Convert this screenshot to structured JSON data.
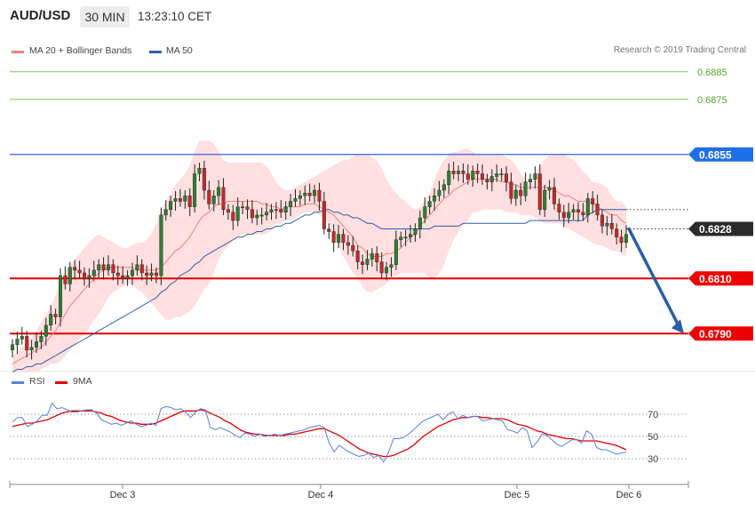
{
  "header": {
    "symbol": "AUD/USD",
    "timeframe": "30 MIN",
    "time": "13:23:10 CET"
  },
  "legend": {
    "ma20_label": "MA 20 + Bollinger Bands",
    "ma50_label": "MA 50"
  },
  "copyright": "Research © 2019 Trading Central",
  "rsi_legend": {
    "rsi_label": "RSI",
    "ma_label": "9MA"
  },
  "colors": {
    "up": "#2e7d32",
    "down": "#c62828",
    "band_fill": "#ffd9d9",
    "ma20": "#f08080",
    "ma50": "#2e5fa8",
    "resistance": "#3a5fd6",
    "support": "#e00000",
    "green_level": "#7ac943",
    "rsi": "#5b7fe0",
    "rsi_ma": "#e00000",
    "arrow": "#2b5ea7"
  },
  "chart_data": [
    {
      "type": "candlestick",
      "title": "",
      "x_ticks": [
        "Dec 3",
        "Dec 4",
        "Dec 5",
        "Dec 6"
      ],
      "ylim": [
        0.67775,
        0.68975
      ],
      "levels": [
        {
          "value": 0.6885,
          "label": "0.6885",
          "style": "thin-green"
        },
        {
          "value": 0.6875,
          "label": "0.6875",
          "style": "thin-green"
        },
        {
          "value": 0.6855,
          "label": "0.6855",
          "style": "resistance"
        },
        {
          "value": 0.6828,
          "label": "0.6828",
          "style": "current-price"
        },
        {
          "value": 0.681,
          "label": "0.6810",
          "style": "support"
        },
        {
          "value": 0.679,
          "label": "0.6790",
          "style": "support"
        }
      ],
      "forecast_arrow": {
        "from": 0.6828,
        "to": 0.679
      },
      "closes": [
        0.6786,
        0.6788,
        0.6789,
        0.6784,
        0.6785,
        0.6787,
        0.6789,
        0.6793,
        0.6797,
        0.6796,
        0.6811,
        0.6808,
        0.6814,
        0.6813,
        0.6812,
        0.681,
        0.6811,
        0.6813,
        0.6815,
        0.6813,
        0.6815,
        0.6812,
        0.6811,
        0.681,
        0.6811,
        0.6813,
        0.6815,
        0.6812,
        0.6811,
        0.6812,
        0.6811,
        0.6833,
        0.6835,
        0.6838,
        0.6839,
        0.6838,
        0.684,
        0.6836,
        0.6848,
        0.685,
        0.6842,
        0.6837,
        0.684,
        0.6843,
        0.6835,
        0.6834,
        0.6831,
        0.6836,
        0.6836,
        0.6835,
        0.6832,
        0.6833,
        0.6833,
        0.6834,
        0.6835,
        0.6835,
        0.6834,
        0.6836,
        0.6838,
        0.6839,
        0.684,
        0.6841,
        0.684,
        0.6842,
        0.6838,
        0.6828,
        0.6827,
        0.6823,
        0.6826,
        0.6823,
        0.6822,
        0.682,
        0.6816,
        0.6815,
        0.6817,
        0.6819,
        0.6816,
        0.6812,
        0.6814,
        0.6815,
        0.6824,
        0.6825,
        0.6825,
        0.6826,
        0.6828,
        0.6832,
        0.6836,
        0.6838,
        0.684,
        0.6842,
        0.6844,
        0.6849,
        0.6848,
        0.6849,
        0.6848,
        0.6846,
        0.6849,
        0.6848,
        0.6846,
        0.6845,
        0.6847,
        0.6848,
        0.6848,
        0.6845,
        0.6839,
        0.6842,
        0.684,
        0.6845,
        0.6846,
        0.6848,
        0.6835,
        0.6842,
        0.6843,
        0.6837,
        0.6834,
        0.6832,
        0.6834,
        0.6835,
        0.6834,
        0.6833,
        0.6839,
        0.6837,
        0.6833,
        0.6829,
        0.683,
        0.6828,
        0.6825,
        0.6823,
        0.6826
      ],
      "ma20": [
        0.6779,
        0.678,
        0.6781,
        0.6782,
        0.6783,
        0.6784,
        0.6785,
        0.6787,
        0.6789,
        0.6791,
        0.6794,
        0.6797,
        0.68,
        0.6802,
        0.6804,
        0.6806,
        0.6808,
        0.681,
        0.6812,
        0.6813,
        0.6814,
        0.6814,
        0.6814,
        0.6814,
        0.6814,
        0.6814,
        0.6813,
        0.6813,
        0.6813,
        0.6813,
        0.6813,
        0.6814,
        0.6816,
        0.6818,
        0.682,
        0.6821,
        0.6823,
        0.6825,
        0.6828,
        0.6831,
        0.6833,
        0.6834,
        0.6836,
        0.6837,
        0.6837,
        0.6838,
        0.6838,
        0.6838,
        0.6838,
        0.6838,
        0.6838,
        0.6838,
        0.6837,
        0.6837,
        0.6836,
        0.6836,
        0.6835,
        0.6836,
        0.6836,
        0.6836,
        0.6836,
        0.6837,
        0.6837,
        0.6837,
        0.6836,
        0.6835,
        0.6834,
        0.6833,
        0.6831,
        0.6829,
        0.6827,
        0.6825,
        0.6822,
        0.6821,
        0.6819,
        0.6818,
        0.6818,
        0.6818,
        0.6819,
        0.6819,
        0.682,
        0.6821,
        0.6823,
        0.6825,
        0.6826,
        0.6829,
        0.6831,
        0.6833,
        0.6835,
        0.6837,
        0.6839,
        0.684,
        0.6842,
        0.6843,
        0.6844,
        0.6845,
        0.6846,
        0.6846,
        0.6846,
        0.6846,
        0.6846,
        0.6846,
        0.6845,
        0.6845,
        0.6844,
        0.6844,
        0.6843,
        0.6843,
        0.6843,
        0.6843,
        0.6843,
        0.6843,
        0.6843,
        0.6842,
        0.6841,
        0.684,
        0.684,
        0.6839,
        0.6838,
        0.6838,
        0.6838,
        0.6837,
        0.6836,
        0.6835,
        0.6834,
        0.6833,
        0.6833,
        0.6831,
        0.683
      ],
      "bb_upper": [
        0.6782,
        0.6783,
        0.6785,
        0.6787,
        0.6789,
        0.6791,
        0.6794,
        0.6797,
        0.68,
        0.6804,
        0.6808,
        0.6812,
        0.6815,
        0.6817,
        0.6819,
        0.6821,
        0.6823,
        0.6825,
        0.6826,
        0.6825,
        0.6824,
        0.6823,
        0.6822,
        0.6821,
        0.6821,
        0.6822,
        0.6823,
        0.6823,
        0.6824,
        0.6826,
        0.683,
        0.6835,
        0.6838,
        0.6841,
        0.6844,
        0.6846,
        0.6848,
        0.6851,
        0.6856,
        0.686,
        0.686,
        0.686,
        0.6859,
        0.6856,
        0.6853,
        0.6852,
        0.6852,
        0.6852,
        0.6852,
        0.6852,
        0.6852,
        0.6852,
        0.6852,
        0.6851,
        0.6848,
        0.6845,
        0.6843,
        0.6842,
        0.6842,
        0.6843,
        0.6844,
        0.6845,
        0.6846,
        0.6847,
        0.6848,
        0.6849,
        0.685,
        0.6851,
        0.6852,
        0.6853,
        0.6853,
        0.6854,
        0.6855,
        0.6855,
        0.6855,
        0.6854,
        0.6853,
        0.685,
        0.6846,
        0.6843,
        0.6841,
        0.6839,
        0.6838,
        0.6836,
        0.6835,
        0.6836,
        0.6838,
        0.6841,
        0.6846,
        0.685,
        0.6853,
        0.6855,
        0.6856,
        0.6856,
        0.6857,
        0.6857,
        0.6856,
        0.6855,
        0.6855,
        0.6855,
        0.6855,
        0.6855,
        0.6855,
        0.6854,
        0.6853,
        0.6851,
        0.6848,
        0.6846,
        0.6845,
        0.6848,
        0.6851,
        0.6853,
        0.6855,
        0.6855,
        0.6855,
        0.6855,
        0.6854,
        0.6853,
        0.6851,
        0.6849,
        0.6847,
        0.6845,
        0.6845,
        0.6844,
        0.6843,
        0.684,
        0.6838,
        0.6838,
        0.6836
      ],
      "bb_lower": [
        0.6776,
        0.6776,
        0.6776,
        0.6776,
        0.6776,
        0.6776,
        0.6777,
        0.6778,
        0.6779,
        0.6779,
        0.678,
        0.6782,
        0.6784,
        0.6786,
        0.6788,
        0.679,
        0.6792,
        0.6795,
        0.6797,
        0.68,
        0.6803,
        0.6805,
        0.6806,
        0.6807,
        0.6808,
        0.6808,
        0.6806,
        0.6805,
        0.6803,
        0.6801,
        0.6799,
        0.6797,
        0.6795,
        0.6795,
        0.6796,
        0.6796,
        0.6797,
        0.6798,
        0.68,
        0.6803,
        0.6806,
        0.6808,
        0.6812,
        0.6817,
        0.682,
        0.6822,
        0.6824,
        0.6825,
        0.6826,
        0.6826,
        0.6826,
        0.6826,
        0.6826,
        0.6826,
        0.6828,
        0.683,
        0.683,
        0.6831,
        0.6831,
        0.6832,
        0.6833,
        0.6834,
        0.6834,
        0.6834,
        0.6833,
        0.6832,
        0.683,
        0.6826,
        0.6822,
        0.6818,
        0.6815,
        0.6812,
        0.681,
        0.6807,
        0.6805,
        0.6805,
        0.6806,
        0.6807,
        0.6808,
        0.681,
        0.6811,
        0.6812,
        0.6812,
        0.6812,
        0.6812,
        0.6812,
        0.6812,
        0.681,
        0.681,
        0.6812,
        0.6815,
        0.682,
        0.6824,
        0.6827,
        0.6829,
        0.6831,
        0.6834,
        0.6834,
        0.6835,
        0.6835,
        0.6835,
        0.6835,
        0.6835,
        0.6834,
        0.6834,
        0.6834,
        0.6833,
        0.6833,
        0.6833,
        0.6832,
        0.6831,
        0.683,
        0.683,
        0.683,
        0.683,
        0.6829,
        0.6828,
        0.6827,
        0.6826,
        0.6825,
        0.6824,
        0.6823,
        0.6822,
        0.6822,
        0.6821,
        0.682,
        0.682,
        0.6819,
        0.6818
      ],
      "ma50": [
        0.6776,
        0.6777,
        0.6777,
        0.6778,
        0.6778,
        0.6779,
        0.6779,
        0.678,
        0.6781,
        0.6782,
        0.6783,
        0.6784,
        0.6785,
        0.6786,
        0.6787,
        0.6788,
        0.6789,
        0.679,
        0.6791,
        0.6792,
        0.6793,
        0.6794,
        0.6795,
        0.6796,
        0.6797,
        0.6798,
        0.6799,
        0.68,
        0.6801,
        0.6802,
        0.6803,
        0.6805,
        0.6806,
        0.6808,
        0.6809,
        0.6811,
        0.6812,
        0.6813,
        0.6815,
        0.6816,
        0.6818,
        0.6819,
        0.682,
        0.6821,
        0.6822,
        0.6823,
        0.6824,
        0.6825,
        0.6825,
        0.6826,
        0.6826,
        0.6827,
        0.6827,
        0.6828,
        0.6828,
        0.6829,
        0.6829,
        0.683,
        0.683,
        0.6831,
        0.6832,
        0.6833,
        0.6833,
        0.6834,
        0.6834,
        0.6835,
        0.6835,
        0.6834,
        0.6834,
        0.6833,
        0.6833,
        0.6832,
        0.6832,
        0.6831,
        0.683,
        0.683,
        0.6829,
        0.6828,
        0.6828,
        0.6828,
        0.6828,
        0.6828,
        0.6828,
        0.6828,
        0.6828,
        0.6828,
        0.6828,
        0.6828,
        0.6829,
        0.6829,
        0.6829,
        0.6829,
        0.6829,
        0.6829,
        0.683,
        0.683,
        0.683,
        0.683,
        0.683,
        0.683,
        0.683,
        0.683,
        0.683,
        0.683,
        0.683,
        0.683,
        0.683,
        0.683,
        0.6831,
        0.6831,
        0.6831,
        0.6831,
        0.6831,
        0.6831,
        0.6831,
        0.6831,
        0.6831,
        0.6831,
        0.6831,
        0.6831,
        0.6833,
        0.6834,
        0.6835,
        0.6835,
        0.6835,
        0.6835,
        0.6835,
        0.6835,
        0.6835
      ]
    },
    {
      "type": "line",
      "title": "",
      "y_ticks": [
        70,
        50,
        30
      ],
      "ylim": [
        18,
        90
      ],
      "series": [
        {
          "name": "RSI",
          "values": [
            63,
            67,
            67,
            59,
            61,
            64,
            69,
            69,
            80,
            75,
            76,
            74,
            72,
            72,
            73,
            74,
            74,
            71,
            65,
            63,
            61,
            62,
            60,
            62,
            64,
            61,
            59,
            60,
            62,
            60,
            75,
            77,
            76,
            74,
            75,
            72,
            67,
            72,
            75,
            74,
            58,
            56,
            58,
            56,
            54,
            51,
            49,
            53,
            52,
            50,
            52,
            50,
            51,
            52,
            51,
            52,
            53,
            54,
            55,
            56,
            58,
            59,
            60,
            58,
            44,
            36,
            42,
            39,
            36,
            34,
            32,
            33,
            35,
            31,
            33,
            27,
            36,
            48,
            48,
            49,
            52,
            56,
            60,
            64,
            66,
            68,
            70,
            65,
            70,
            72,
            66,
            69,
            67,
            68,
            68,
            64,
            65,
            66,
            65,
            64,
            56,
            55,
            53,
            58,
            55,
            40,
            45,
            52,
            51,
            47,
            43,
            41,
            44,
            47,
            47,
            44,
            55,
            52,
            40,
            38,
            38,
            36,
            34,
            35,
            36
          ],
          "color": "#5b7fe0"
        },
        {
          "name": "9MA",
          "values": [
            59,
            60,
            61,
            62,
            62,
            63,
            64,
            65,
            67,
            69,
            71,
            72,
            73,
            73,
            73,
            73,
            73,
            72,
            71,
            69,
            68,
            66,
            64,
            63,
            62,
            62,
            61,
            61,
            61,
            62,
            64,
            66,
            68,
            70,
            72,
            73,
            73,
            73,
            74,
            73,
            71,
            69,
            67,
            64,
            62,
            59,
            56,
            54,
            53,
            52,
            52,
            51,
            51,
            51,
            51,
            51,
            52,
            52,
            53,
            54,
            55,
            56,
            57,
            57,
            55,
            53,
            51,
            48,
            45,
            42,
            39,
            37,
            35,
            34,
            33,
            32,
            32,
            33,
            35,
            37,
            39,
            42,
            46,
            50,
            53,
            56,
            59,
            61,
            63,
            65,
            66,
            67,
            67,
            68,
            68,
            67,
            67,
            66,
            66,
            66,
            65,
            63,
            61,
            60,
            59,
            57,
            55,
            54,
            52,
            51,
            50,
            49,
            48,
            48,
            47,
            46,
            46,
            46,
            46,
            45,
            44,
            43,
            42,
            40,
            38
          ],
          "color": "#e00000"
        }
      ]
    }
  ]
}
